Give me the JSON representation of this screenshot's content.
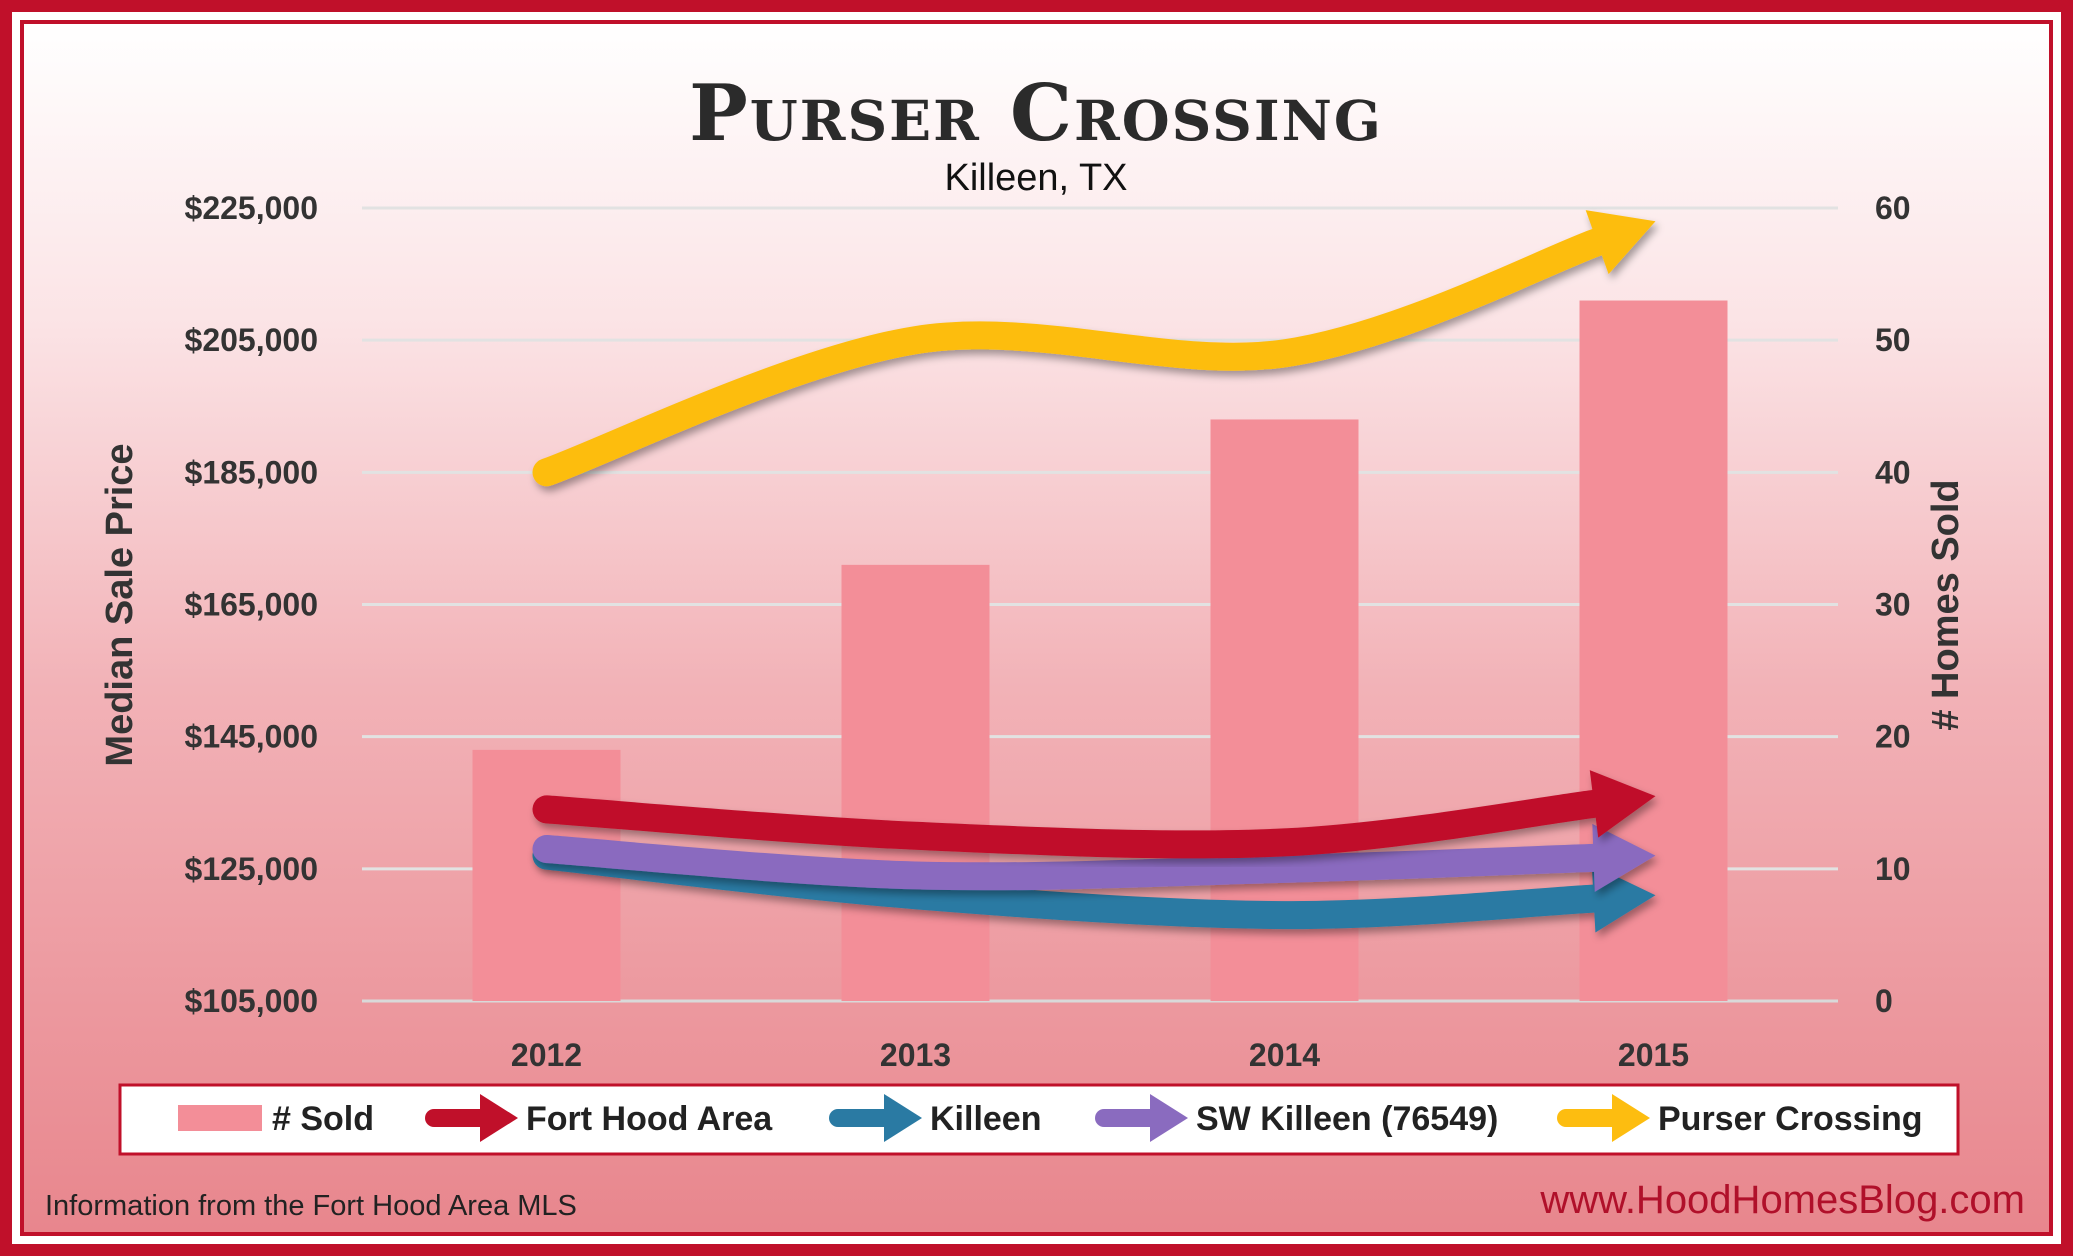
{
  "chart_data": {
    "type": "bar",
    "title": "Purser Crossing",
    "subtitle": "Killeen, TX",
    "categories": [
      "2012",
      "2013",
      "2014",
      "2015"
    ],
    "y_left": {
      "label": "Median Sale Price",
      "ticks": [
        "$105,000",
        "$125,000",
        "$145,000",
        "$165,000",
        "$185,000",
        "$205,000",
        "$225,000"
      ],
      "range": [
        105000,
        225000
      ]
    },
    "y_right": {
      "label": "# Homes Sold",
      "ticks": [
        "0",
        "10",
        "20",
        "30",
        "40",
        "50",
        "60"
      ],
      "range": [
        0,
        60
      ]
    },
    "bars": {
      "name": "# Sold",
      "axis": "right",
      "color": "#f38e98",
      "values": [
        19,
        33,
        44,
        53
      ]
    },
    "series": [
      {
        "name": "Fort Hood Area",
        "axis": "left",
        "color": "#c0102a",
        "values": [
          134000,
          130000,
          129000,
          136000
        ]
      },
      {
        "name": "Killeen",
        "axis": "left",
        "color": "#2a7aa3",
        "values": [
          127000,
          121000,
          118000,
          121000
        ]
      },
      {
        "name": "SW Killeen (76549)",
        "axis": "left",
        "color": "#8a6bbf",
        "values": [
          128000,
          124000,
          125000,
          127000
        ]
      },
      {
        "name": "Purser Crossing",
        "axis": "left",
        "color": "#fdbd10",
        "values": [
          185000,
          205000,
          203000,
          223000
        ]
      }
    ],
    "grid": true,
    "legend_position": "bottom"
  },
  "footer": {
    "source": "Information from the Fort Hood Area MLS",
    "website": "www.HoodHomesBlog.com"
  }
}
